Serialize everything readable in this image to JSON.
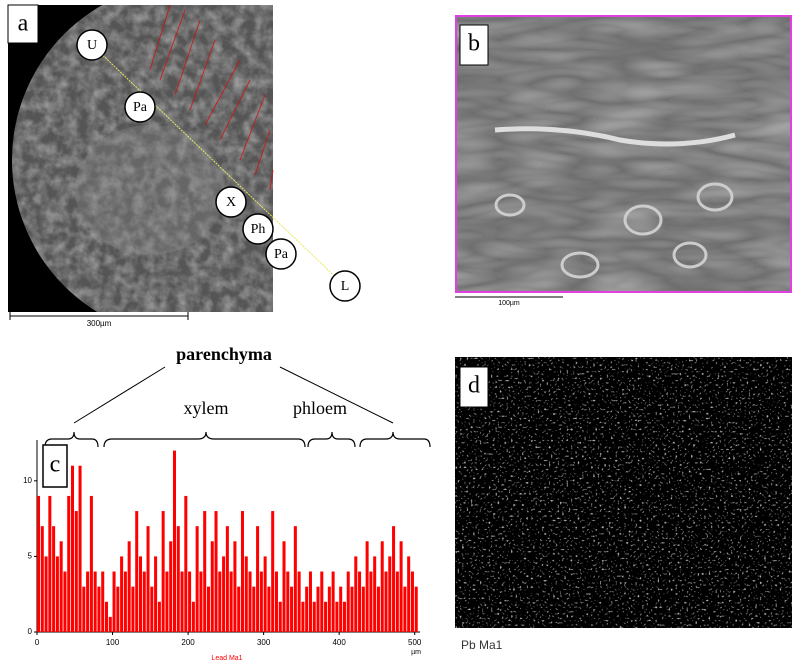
{
  "panels": {
    "a": {
      "label": "a",
      "markers": [
        "U",
        "Pa",
        "X",
        "Ph",
        "Pa",
        "L"
      ],
      "scale_bar": "300µm"
    },
    "b": {
      "label": "b",
      "scale_bar": "100µm"
    },
    "c": {
      "label": "c",
      "annotations": {
        "parenchyma": "parenchyma",
        "xylem": "xylem",
        "phloem": "phloem"
      }
    },
    "d": {
      "label": "d",
      "caption": "Pb Ma1"
    }
  },
  "chart_data": {
    "type": "bar",
    "x_label": "Lead Ma1",
    "x_unit": "µm",
    "color": "#ff0000",
    "x": [
      0,
      5,
      10,
      15,
      20,
      25,
      30,
      35,
      40,
      45,
      50,
      55,
      60,
      65,
      70,
      75,
      80,
      85,
      90,
      95,
      100,
      105,
      110,
      115,
      120,
      125,
      130,
      135,
      140,
      145,
      150,
      155,
      160,
      165,
      170,
      175,
      180,
      185,
      190,
      195,
      200,
      205,
      210,
      215,
      220,
      225,
      230,
      235,
      240,
      245,
      250,
      255,
      260,
      265,
      270,
      275,
      280,
      285,
      290,
      295,
      300,
      305,
      310,
      315,
      320,
      325,
      330,
      335,
      340,
      345,
      350,
      355,
      360,
      365,
      370,
      375,
      380,
      385,
      390,
      395,
      400,
      405,
      410,
      415,
      420,
      425,
      430,
      435,
      440,
      445,
      450,
      455,
      460,
      465,
      470,
      475,
      480,
      485,
      490,
      495,
      500
    ],
    "values": [
      9,
      7,
      5,
      9,
      7,
      5,
      6,
      4,
      9,
      11,
      8,
      11,
      3,
      4,
      9,
      4,
      3,
      4,
      2,
      1,
      4,
      3,
      5,
      4,
      6,
      3,
      8,
      5,
      4,
      7,
      3,
      5,
      2,
      8,
      4,
      6,
      12,
      7,
      4,
      9,
      4,
      2,
      7,
      4,
      8,
      3,
      6,
      8,
      4,
      5,
      7,
      4,
      6,
      3,
      8,
      5,
      4,
      3,
      7,
      4,
      5,
      3,
      8,
      4,
      2,
      6,
      4,
      3,
      7,
      4,
      2,
      3,
      4,
      2,
      3,
      4,
      2,
      3,
      4,
      2,
      3,
      2,
      4,
      3,
      5,
      4,
      3,
      6,
      4,
      5,
      3,
      6,
      4,
      5,
      7,
      4,
      6,
      3,
      5,
      4,
      3
    ],
    "xlim": [
      0,
      507
    ],
    "ylim": [
      0,
      12.7
    ],
    "xticks": [
      0,
      100,
      200,
      300,
      400,
      500
    ],
    "yticks": [
      0,
      5,
      10
    ]
  }
}
